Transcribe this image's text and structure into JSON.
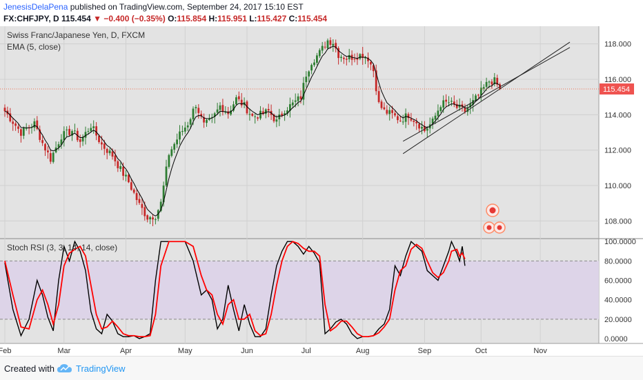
{
  "header": {
    "author": "JenesisDelaPena",
    "published_text": "published on TradingView.com, September 24, 2017 15:10 EST",
    "symbol": "FX:CHFJPY, D",
    "last": "115.454",
    "change": "−0.400 (−0.35%)",
    "o_label": "O:",
    "o": "115.854",
    "h_label": "H:",
    "h": "115.951",
    "l_label": "L:",
    "l": "115.427",
    "c_label": "C:",
    "c": "115.454"
  },
  "footer": {
    "created_with": "Created with",
    "brand": "TradingView"
  },
  "colors": {
    "up": "#2e7d32",
    "down": "#c62828",
    "ema": "#000000",
    "stoch_k": "#000000",
    "stoch_d": "#ff0000",
    "band": "#ddd4e8",
    "panel_bg": "#e3e3e3",
    "price_line": "#ef6c4d"
  },
  "chart_data": [
    {
      "type": "candlestick",
      "title": "Swiss Franc/Japanese Yen, D, FXCM",
      "indicator": "EMA (5, close)",
      "ylim": [
        107,
        119
      ],
      "yticks": [
        "108.000",
        "110.000",
        "112.000",
        "114.000",
        "116.000",
        "118.000"
      ],
      "ytick_values": [
        108,
        110,
        112,
        114,
        116,
        118
      ],
      "last_price": 115.454,
      "last_price_label": "115.454",
      "channel_lines": [
        {
          "from": [
            148,
            111.8
          ],
          "to": [
            210,
            118.1
          ]
        },
        {
          "from": [
            148,
            112.5
          ],
          "to": [
            210,
            117.8
          ]
        }
      ],
      "ohlc_anchors": [
        [
          0,
          114.2
        ],
        [
          6,
          113.0
        ],
        [
          11,
          113.5
        ],
        [
          14,
          112.4
        ],
        [
          17,
          111.5
        ],
        [
          21,
          112.8
        ],
        [
          25,
          113.1
        ],
        [
          28,
          112.5
        ],
        [
          32,
          113.4
        ],
        [
          36,
          112.3
        ],
        [
          40,
          111.7
        ],
        [
          43,
          110.9
        ],
        [
          46,
          110.2
        ],
        [
          50,
          108.9
        ],
        [
          53,
          108.2
        ],
        [
          56,
          108.3
        ],
        [
          58,
          109.0
        ],
        [
          61,
          111.8
        ],
        [
          65,
          112.9
        ],
        [
          68,
          113.5
        ],
        [
          71,
          114.6
        ],
        [
          74,
          113.4
        ],
        [
          77,
          113.7
        ],
        [
          80,
          114.5
        ],
        [
          83,
          114.1
        ],
        [
          86,
          114.9
        ],
        [
          89,
          114.5
        ],
        [
          92,
          113.9
        ],
        [
          95,
          114.0
        ],
        [
          98,
          114.2
        ],
        [
          101,
          113.6
        ],
        [
          104,
          114.3
        ],
        [
          107,
          114.6
        ],
        [
          110,
          115.0
        ],
        [
          112,
          116.3
        ],
        [
          114,
          117.0
        ],
        [
          117,
          117.5
        ],
        [
          120,
          118.2
        ],
        [
          122,
          118.1
        ],
        [
          124,
          117.4
        ],
        [
          127,
          117.2
        ],
        [
          130,
          117.3
        ],
        [
          133,
          117.4
        ],
        [
          135,
          117.2
        ],
        [
          137,
          116.5
        ],
        [
          139,
          114.6
        ],
        [
          141,
          114.2
        ],
        [
          144,
          114.0
        ],
        [
          147,
          113.7
        ],
        [
          150,
          114.0
        ],
        [
          153,
          113.6
        ],
        [
          156,
          113.1
        ],
        [
          159,
          113.6
        ],
        [
          162,
          114.6
        ],
        [
          165,
          114.7
        ],
        [
          168,
          114.4
        ],
        [
          171,
          114.2
        ],
        [
          174,
          114.7
        ],
        [
          177,
          115.3
        ],
        [
          180,
          115.9
        ],
        [
          182,
          115.9
        ],
        [
          184,
          115.454
        ]
      ],
      "x_ticks": [
        {
          "label": "Feb",
          "i": 0
        },
        {
          "label": "Mar",
          "i": 22
        },
        {
          "label": "Apr",
          "i": 45
        },
        {
          "label": "May",
          "i": 67
        },
        {
          "label": "Jun",
          "i": 90
        },
        {
          "label": "Jul",
          "i": 112
        },
        {
          "label": "Aug",
          "i": 133
        },
        {
          "label": "Sep",
          "i": 156
        },
        {
          "label": "Oct",
          "i": 177
        },
        {
          "label": "Nov",
          "i": 199
        }
      ]
    },
    {
      "type": "line",
      "title": "Stoch RSI (3, 3, 14, 14, close)",
      "ylim": [
        -5,
        103
      ],
      "yticks": [
        "0.0000",
        "20.0000",
        "40.0000",
        "60.0000",
        "80.0000",
        "100.0000"
      ],
      "ytick_values": [
        0,
        20,
        40,
        60,
        80,
        100
      ],
      "overbought": 80,
      "oversold": 20,
      "series": [
        {
          "key": "k",
          "points": [
            [
              0,
              78
            ],
            [
              3,
              30
            ],
            [
              6,
              3
            ],
            [
              9,
              20
            ],
            [
              12,
              60
            ],
            [
              14,
              45
            ],
            [
              16,
              22
            ],
            [
              18,
              8
            ],
            [
              20,
              60
            ],
            [
              22,
              95
            ],
            [
              24,
              80
            ],
            [
              26,
              100
            ],
            [
              28,
              90
            ],
            [
              30,
              70
            ],
            [
              32,
              28
            ],
            [
              34,
              10
            ],
            [
              36,
              5
            ],
            [
              38,
              25
            ],
            [
              40,
              18
            ],
            [
              42,
              5
            ],
            [
              44,
              2
            ],
            [
              46,
              2
            ],
            [
              48,
              3
            ],
            [
              50,
              0
            ],
            [
              52,
              2
            ],
            [
              54,
              5
            ],
            [
              56,
              60
            ],
            [
              58,
              100
            ],
            [
              61,
              100
            ],
            [
              64,
              100
            ],
            [
              67,
              100
            ],
            [
              70,
              80
            ],
            [
              73,
              45
            ],
            [
              75,
              50
            ],
            [
              77,
              40
            ],
            [
              79,
              10
            ],
            [
              81,
              20
            ],
            [
              83,
              55
            ],
            [
              85,
              30
            ],
            [
              87,
              8
            ],
            [
              89,
              35
            ],
            [
              91,
              15
            ],
            [
              93,
              2
            ],
            [
              95,
              2
            ],
            [
              97,
              10
            ],
            [
              99,
              45
            ],
            [
              101,
              75
            ],
            [
              103,
              90
            ],
            [
              105,
              100
            ],
            [
              107,
              100
            ],
            [
              109,
              95
            ],
            [
              111,
              87
            ],
            [
              113,
              95
            ],
            [
              115,
              88
            ],
            [
              117,
              78
            ],
            [
              119,
              5
            ],
            [
              121,
              10
            ],
            [
              123,
              17
            ],
            [
              125,
              20
            ],
            [
              127,
              15
            ],
            [
              129,
              5
            ],
            [
              131,
              0
            ],
            [
              133,
              2
            ],
            [
              135,
              2
            ],
            [
              137,
              3
            ],
            [
              139,
              10
            ],
            [
              141,
              15
            ],
            [
              143,
              30
            ],
            [
              145,
              75
            ],
            [
              147,
              65
            ],
            [
              149,
              85
            ],
            [
              151,
              100
            ],
            [
              153,
              95
            ],
            [
              155,
              90
            ],
            [
              157,
              70
            ],
            [
              159,
              65
            ],
            [
              161,
              60
            ],
            [
              163,
              75
            ],
            [
              165,
              90
            ],
            [
              166,
              100
            ],
            [
              168,
              88
            ],
            [
              169,
              80
            ],
            [
              170,
              95
            ],
            [
              171,
              75
            ]
          ]
        },
        {
          "key": "d",
          "points": [
            [
              0,
              80
            ],
            [
              3,
              45
            ],
            [
              6,
              12
            ],
            [
              9,
              10
            ],
            [
              12,
              40
            ],
            [
              14,
              50
            ],
            [
              16,
              35
            ],
            [
              18,
              15
            ],
            [
              20,
              35
            ],
            [
              22,
              75
            ],
            [
              24,
              88
            ],
            [
              26,
              92
            ],
            [
              28,
              95
            ],
            [
              30,
              85
            ],
            [
              32,
              55
            ],
            [
              34,
              25
            ],
            [
              36,
              10
            ],
            [
              38,
              12
            ],
            [
              40,
              18
            ],
            [
              42,
              12
            ],
            [
              44,
              5
            ],
            [
              46,
              3
            ],
            [
              48,
              3
            ],
            [
              50,
              2
            ],
            [
              52,
              2
            ],
            [
              54,
              3
            ],
            [
              56,
              25
            ],
            [
              58,
              75
            ],
            [
              61,
              100
            ],
            [
              64,
              100
            ],
            [
              67,
              100
            ],
            [
              70,
              95
            ],
            [
              73,
              65
            ],
            [
              75,
              50
            ],
            [
              77,
              45
            ],
            [
              79,
              25
            ],
            [
              81,
              15
            ],
            [
              83,
              35
            ],
            [
              85,
              40
            ],
            [
              87,
              20
            ],
            [
              89,
              20
            ],
            [
              91,
              25
            ],
            [
              93,
              8
            ],
            [
              95,
              3
            ],
            [
              97,
              5
            ],
            [
              99,
              25
            ],
            [
              101,
              55
            ],
            [
              103,
              80
            ],
            [
              105,
              95
            ],
            [
              107,
              100
            ],
            [
              109,
              98
            ],
            [
              111,
              93
            ],
            [
              113,
              90
            ],
            [
              115,
              90
            ],
            [
              117,
              85
            ],
            [
              119,
              35
            ],
            [
              121,
              8
            ],
            [
              123,
              12
            ],
            [
              125,
              18
            ],
            [
              127,
              18
            ],
            [
              129,
              12
            ],
            [
              131,
              5
            ],
            [
              133,
              2
            ],
            [
              135,
              2
            ],
            [
              137,
              3
            ],
            [
              139,
              6
            ],
            [
              141,
              12
            ],
            [
              143,
              20
            ],
            [
              145,
              50
            ],
            [
              147,
              70
            ],
            [
              149,
              75
            ],
            [
              151,
              92
            ],
            [
              153,
              97
            ],
            [
              155,
              93
            ],
            [
              157,
              80
            ],
            [
              159,
              68
            ],
            [
              161,
              63
            ],
            [
              163,
              68
            ],
            [
              165,
              80
            ],
            [
              166,
              90
            ],
            [
              168,
              92
            ],
            [
              169,
              85
            ],
            [
              170,
              88
            ],
            [
              171,
              82
            ]
          ]
        }
      ]
    }
  ]
}
